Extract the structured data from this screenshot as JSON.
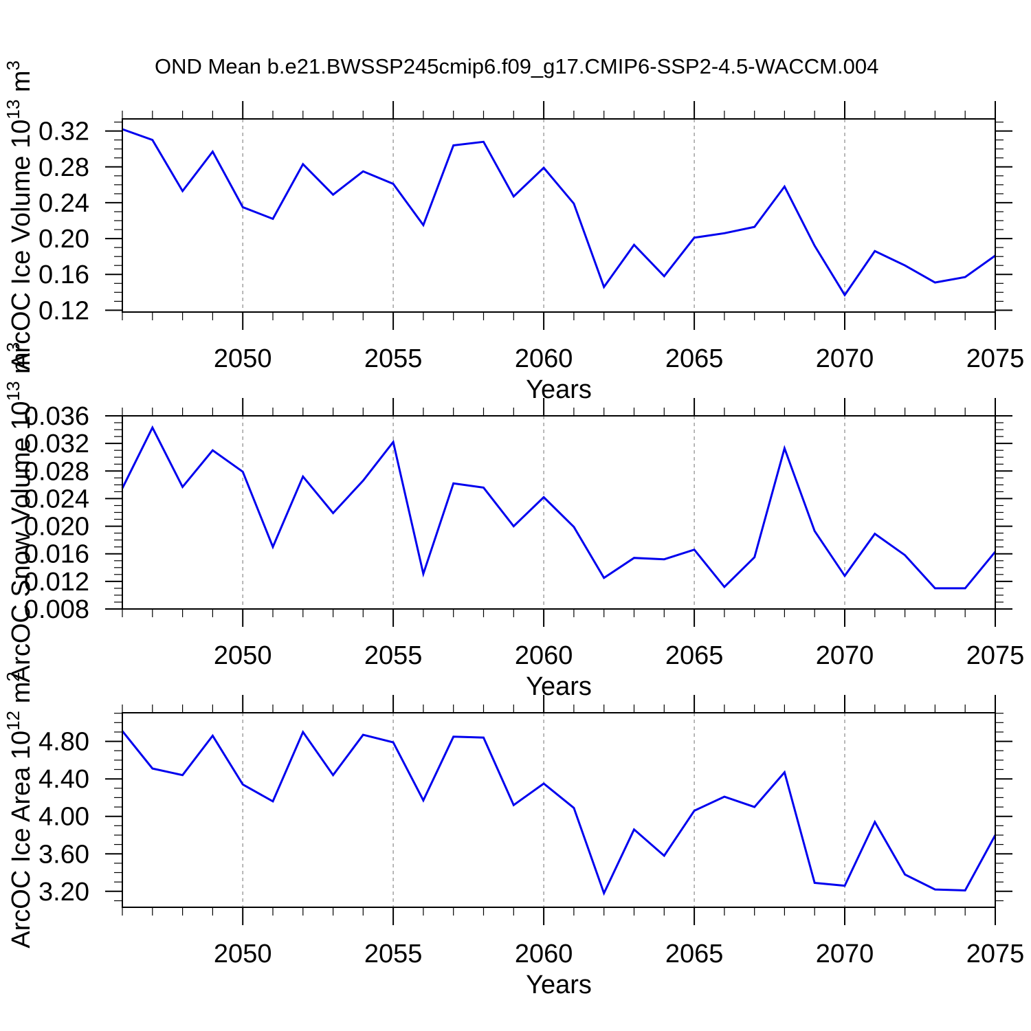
{
  "title": "OND Mean b.e21.BWSSP245cmip6.f09_g17.CMIP6-SSP2-4.5-WACCM.004",
  "colors": {
    "line": "#0000ee",
    "axis": "#000000",
    "gridline": "#888888",
    "background": "#ffffff"
  },
  "chart_data": [
    {
      "type": "line",
      "name": "ice-volume",
      "ylabel_text": "ArcOC Ice Volume 10^13 m^3",
      "ylabel_prefix": "ArcOC Ice Volume 10",
      "ylabel_exp": "13",
      "ylabel_unit": " m",
      "ylabel_unit_exp": "3",
      "xlabel": "Years",
      "x": [
        2046,
        2047,
        2048,
        2049,
        2050,
        2051,
        2052,
        2053,
        2054,
        2055,
        2056,
        2057,
        2058,
        2059,
        2060,
        2061,
        2062,
        2063,
        2064,
        2065,
        2066,
        2067,
        2068,
        2069,
        2070,
        2071,
        2072,
        2073,
        2074,
        2075
      ],
      "values": [
        0.322,
        0.31,
        0.253,
        0.297,
        0.235,
        0.222,
        0.283,
        0.249,
        0.275,
        0.261,
        0.215,
        0.304,
        0.308,
        0.247,
        0.279,
        0.239,
        0.146,
        0.193,
        0.158,
        0.201,
        0.206,
        0.213,
        0.258,
        0.192,
        0.137,
        0.186,
        0.17,
        0.151,
        0.157,
        0.181
      ],
      "xlim": [
        2046,
        2075
      ],
      "ylim": [
        0.118,
        0.3335
      ],
      "xticks": [
        2050,
        2055,
        2060,
        2065,
        2070,
        2075
      ],
      "xtick_labels": [
        "2050",
        "2055",
        "2060",
        "2065",
        "2070",
        "2075"
      ],
      "grid_x": [
        2050,
        2055,
        2060,
        2065,
        2070
      ],
      "yticks": [
        0.12,
        0.16,
        0.2,
        0.24,
        0.28,
        0.32
      ],
      "ytick_labels": [
        "0.12",
        "0.16",
        "0.20",
        "0.24",
        "0.28",
        "0.32"
      ],
      "yminor_step": 0.01,
      "grid": "vertical-dashed-only",
      "legend": "none"
    },
    {
      "type": "line",
      "name": "snow-volume",
      "ylabel_text": "ArcOC Snow Volume 10^13 m^3",
      "ylabel_prefix": "ArcOC Snow Volume 10",
      "ylabel_exp": "13",
      "ylabel_unit": " m",
      "ylabel_unit_exp": "3",
      "xlabel": "Years",
      "x": [
        2046,
        2047,
        2048,
        2049,
        2050,
        2051,
        2052,
        2053,
        2054,
        2055,
        2056,
        2057,
        2058,
        2059,
        2060,
        2061,
        2062,
        2063,
        2064,
        2065,
        2066,
        2067,
        2068,
        2069,
        2070,
        2071,
        2072,
        2073,
        2074,
        2075
      ],
      "values": [
        0.0255,
        0.0343,
        0.0257,
        0.031,
        0.0279,
        0.017,
        0.0272,
        0.0219,
        0.0266,
        0.0322,
        0.0131,
        0.0262,
        0.0256,
        0.02,
        0.0242,
        0.0199,
        0.0125,
        0.0154,
        0.0152,
        0.0166,
        0.0112,
        0.0155,
        0.0313,
        0.0193,
        0.0128,
        0.0189,
        0.0158,
        0.011,
        0.011,
        0.0163
      ],
      "xlim": [
        2046,
        2075
      ],
      "ylim": [
        0.008,
        0.036
      ],
      "xticks": [
        2050,
        2055,
        2060,
        2065,
        2070,
        2075
      ],
      "xtick_labels": [
        "2050",
        "2055",
        "2060",
        "2065",
        "2070",
        "2075"
      ],
      "grid_x": [
        2050,
        2055,
        2060,
        2065,
        2070
      ],
      "yticks": [
        0.008,
        0.012,
        0.016,
        0.02,
        0.024,
        0.028,
        0.032,
        0.036
      ],
      "ytick_labels": [
        "0.008",
        "0.012",
        "0.016",
        "0.020",
        "0.024",
        "0.028",
        "0.032",
        "0.036"
      ],
      "yminor_step": 0.001,
      "grid": "vertical-dashed-only",
      "legend": "none"
    },
    {
      "type": "line",
      "name": "ice-area",
      "ylabel_text": "ArcOC Ice Area 10^12 m^2",
      "ylabel_prefix": "ArcOC Ice Area 10",
      "ylabel_exp": "12",
      "ylabel_unit": " m",
      "ylabel_unit_exp": "2",
      "xlabel": "Years",
      "x": [
        2046,
        2047,
        2048,
        2049,
        2050,
        2051,
        2052,
        2053,
        2054,
        2055,
        2056,
        2057,
        2058,
        2059,
        2060,
        2061,
        2062,
        2063,
        2064,
        2065,
        2066,
        2067,
        2068,
        2069,
        2070,
        2071,
        2072,
        2073,
        2074,
        2075
      ],
      "values": [
        4.91,
        4.51,
        4.44,
        4.86,
        4.34,
        4.16,
        4.9,
        4.44,
        4.87,
        4.79,
        4.17,
        4.85,
        4.84,
        4.12,
        4.35,
        4.09,
        3.18,
        3.86,
        3.58,
        4.06,
        4.21,
        4.1,
        4.47,
        3.29,
        3.26,
        3.94,
        3.38,
        3.22,
        3.21,
        3.8
      ],
      "xlim": [
        2046,
        2075
      ],
      "ylim": [
        3.03,
        5.105
      ],
      "xticks": [
        2050,
        2055,
        2060,
        2065,
        2070,
        2075
      ],
      "xtick_labels": [
        "2050",
        "2055",
        "2060",
        "2065",
        "2070",
        "2075"
      ],
      "grid_x": [
        2050,
        2055,
        2060,
        2065,
        2070
      ],
      "yticks": [
        3.2,
        3.6,
        4.0,
        4.4,
        4.8
      ],
      "ytick_labels": [
        "3.20",
        "3.60",
        "4.00",
        "4.40",
        "4.80"
      ],
      "yminor_step": 0.1,
      "grid": "vertical-dashed-only",
      "legend": "none"
    }
  ]
}
